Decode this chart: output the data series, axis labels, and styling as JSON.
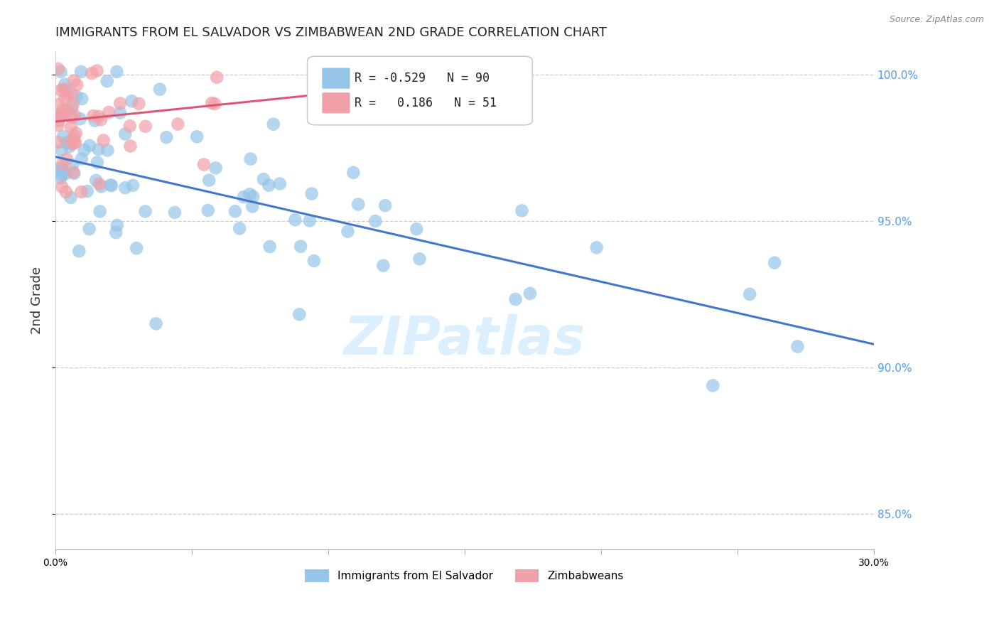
{
  "title": "IMMIGRANTS FROM EL SALVADOR VS ZIMBABWEAN 2ND GRADE CORRELATION CHART",
  "source": "Source: ZipAtlas.com",
  "ylabel": "2nd Grade",
  "xlim": [
    0.0,
    0.3
  ],
  "ylim": [
    0.838,
    1.008
  ],
  "xticks": [
    0.0,
    0.05,
    0.1,
    0.15,
    0.2,
    0.25,
    0.3
  ],
  "xticklabels": [
    "0.0%",
    "",
    "",
    "",
    "",
    "",
    "30.0%"
  ],
  "yticks": [
    0.85,
    0.9,
    0.95,
    1.0
  ],
  "yticklabels": [
    "85.0%",
    "90.0%",
    "95.0%",
    "100.0%"
  ],
  "blue_color": "#95C5E8",
  "pink_color": "#F0A0A8",
  "blue_line_color": "#4477CC",
  "pink_line_color": "#DD5577",
  "R_blue": -0.529,
  "N_blue": 90,
  "R_pink": 0.186,
  "N_pink": 51,
  "watermark": "ZIPatlas",
  "legend_label_blue": "Immigrants from El Salvador",
  "legend_label_pink": "Zimbabweans",
  "background_color": "#ffffff",
  "grid_color": "#cccccc",
  "title_fontsize": 13,
  "tick_fontsize": 10,
  "right_tick_color": "#5599EE",
  "blue_line_x0": 0.0,
  "blue_line_x1": 0.3,
  "blue_line_y0": 0.972,
  "blue_line_y1": 0.908,
  "pink_line_x0": 0.0,
  "pink_line_x1": 0.115,
  "pink_line_y0": 0.984,
  "pink_line_y1": 0.995
}
